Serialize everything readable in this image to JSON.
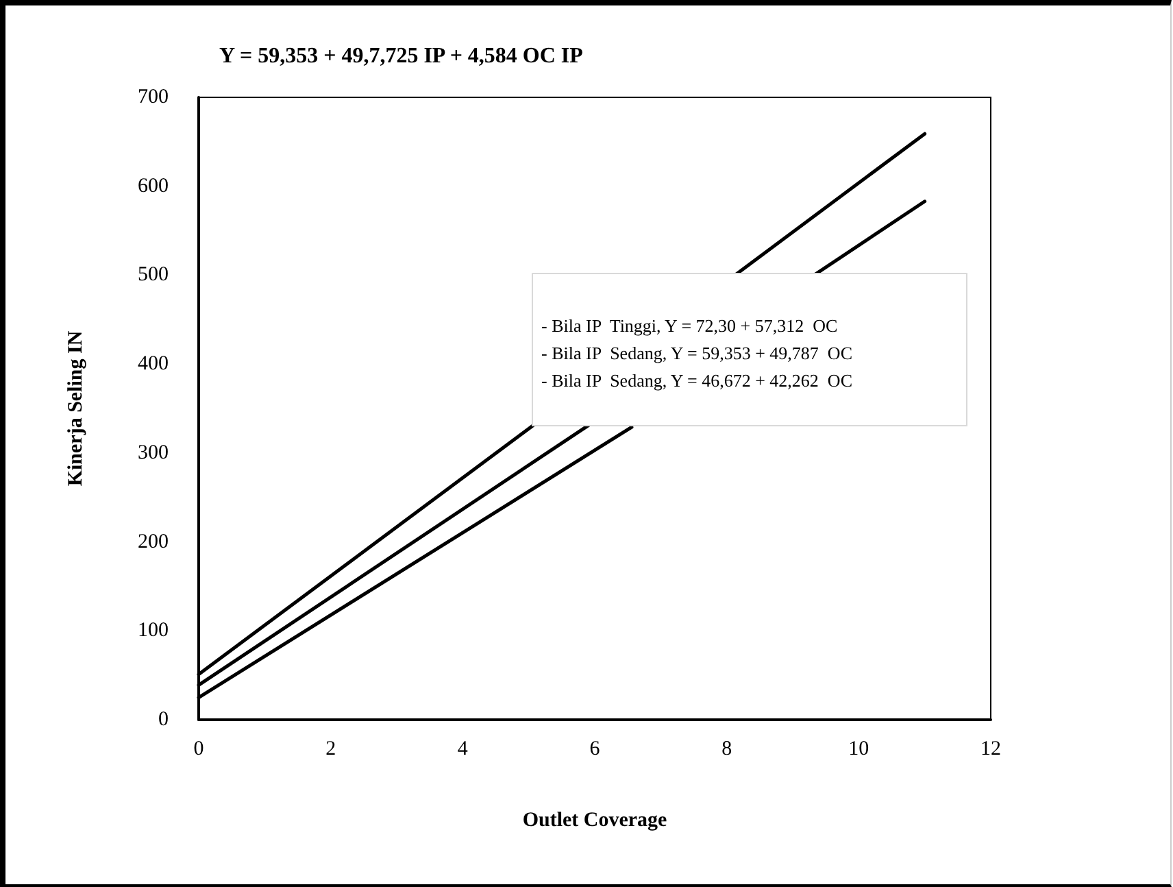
{
  "chart_data": {
    "type": "line",
    "title": "Y = 59,353 + 49,7,725 IP + 4,584 OC IP",
    "xlabel": "Outlet Coverage",
    "ylabel": "Kinerja Seling IN",
    "xlim": [
      0,
      12
    ],
    "xticks": [
      0,
      2,
      4,
      6,
      8,
      10,
      12
    ],
    "ylim": [
      0,
      700
    ],
    "yticks": [
      0,
      100,
      200,
      300,
      400,
      500,
      600,
      700
    ],
    "series": [
      {
        "color": "#000000",
        "x": [
          0,
          11
        ],
        "values": [
          51,
          659
        ]
      },
      {
        "color": "#000000",
        "x": [
          0,
          11
        ],
        "values": [
          39,
          583
        ]
      },
      {
        "color": "#000000",
        "x": [
          0,
          6.56
        ],
        "values": [
          25,
          329
        ]
      }
    ],
    "annotations": [
      "- Bila IP  Tinggi, Y = 72,30 + 57,312  OC",
      "- Bila IP  Sedang, Y = 59,353 + 49,787  OC",
      "- Bila IP  Sedang, Y = 46,672 + 42,262  OC"
    ],
    "grid": false,
    "marker": "none",
    "line_style": "solid"
  }
}
